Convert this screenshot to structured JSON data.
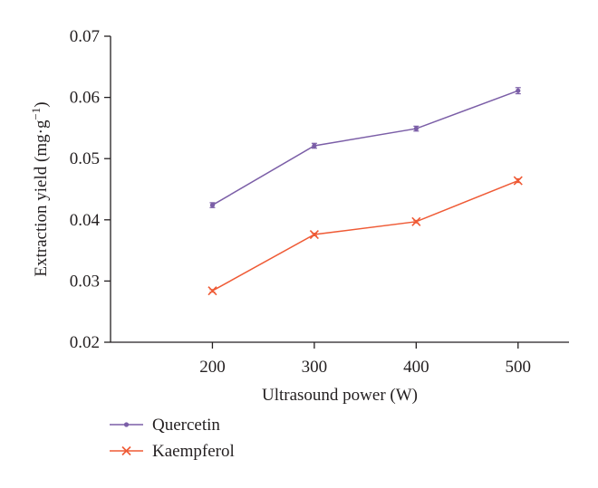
{
  "chart_data": {
    "type": "line",
    "x": [
      200,
      300,
      400,
      500
    ],
    "series": [
      {
        "name": "Quercetin",
        "values": [
          0.0424,
          0.0521,
          0.0549,
          0.0611
        ],
        "error": [
          0.0004,
          0.0004,
          0.0004,
          0.0005
        ],
        "color": "#7b5ea7",
        "marker": "dot"
      },
      {
        "name": "Kaempferol",
        "values": [
          0.0284,
          0.0376,
          0.0397,
          0.0464
        ],
        "error": [
          0.0002,
          0.0002,
          0.0002,
          0.0003
        ],
        "color": "#ef5a35",
        "marker": "x"
      }
    ],
    "xlabel": "Ultrasound power (W)",
    "ylabel": {
      "text": "Extraction yield (mg·g",
      "superscript": "−1",
      "close": ")"
    },
    "xticks": [
      "200",
      "300",
      "400",
      "500"
    ],
    "yticks": [
      "0.02",
      "0.03",
      "0.04",
      "0.05",
      "0.06",
      "0.07"
    ],
    "xlim": [
      100,
      550
    ],
    "ylim": [
      0.02,
      0.07
    ],
    "grid": false,
    "legend_position": "bottom-left"
  }
}
